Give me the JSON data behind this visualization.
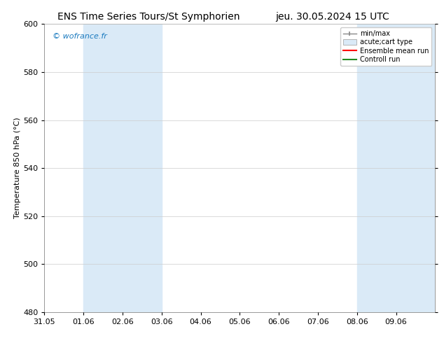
{
  "title_left": "ENS Time Series Tours/St Symphorien",
  "title_right": "jeu. 30.05.2024 15 UTC",
  "ylabel": "Temperature 850 hPa (°C)",
  "watermark": "© wofrance.fr",
  "watermark_color": "#1a7abf",
  "ylim": [
    480,
    600
  ],
  "yticks": [
    480,
    500,
    520,
    540,
    560,
    580,
    600
  ],
  "background_color": "#ffffff",
  "plot_bg_color": "#ffffff",
  "shade_color": "#daeaf7",
  "shade_regions": [
    [
      "2024-06-01",
      "2024-06-03"
    ],
    [
      "2024-06-08",
      "2024-06-10"
    ]
  ],
  "x_start": "2024-05-31",
  "x_end": "2024-06-10",
  "xtick_positions": [
    0,
    1,
    2,
    3,
    4,
    5,
    6,
    7,
    8,
    9
  ],
  "xtick_labels": [
    "31.05",
    "01.06",
    "02.06",
    "03.06",
    "04.06",
    "05.06",
    "06.06",
    "07.06",
    "08.06",
    "09.06"
  ],
  "legend_entries": [
    {
      "label": "min/max",
      "color": "#aaaaaa",
      "style": "minmax"
    },
    {
      "label": "acute;cart type",
      "color": "#cccccc",
      "style": "box"
    },
    {
      "label": "Ensemble mean run",
      "color": "#ff0000",
      "style": "line"
    },
    {
      "label": "Controll run",
      "color": "#228b22",
      "style": "line"
    }
  ],
  "title_fontsize": 10,
  "axis_fontsize": 8,
  "tick_fontsize": 8,
  "legend_fontsize": 7
}
